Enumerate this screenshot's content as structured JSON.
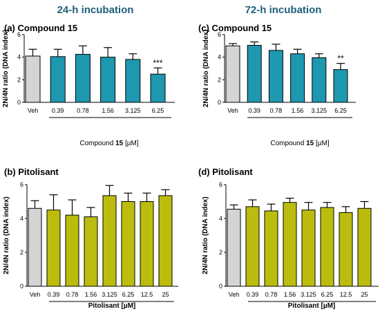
{
  "column_titles": [
    "24-h incubation",
    "72-h incubation"
  ],
  "colors": {
    "veh": "#d4d4d4",
    "compound": "#1e98ae",
    "pitolisant": "#bcbc0f",
    "title": "#1f5f7a"
  },
  "chart_data": [
    {
      "panel": "(a) Compound 15",
      "type": "bar",
      "ylabel": "2N/4N ratio (DNA index)",
      "ylim": [
        0,
        6
      ],
      "yticks": [
        "0",
        "2",
        "4",
        "6"
      ],
      "categories": [
        "Veh",
        "0.39",
        "0.78",
        "1.56",
        "3.125",
        "6.25"
      ],
      "values": [
        4.1,
        4.05,
        4.25,
        4.0,
        3.8,
        2.5
      ],
      "errors": [
        0.6,
        0.65,
        0.75,
        0.85,
        0.5,
        0.55
      ],
      "significance": [
        "",
        "",
        "",
        "",
        "",
        "***"
      ],
      "xlabel_prefix": "Compound ",
      "xlabel_bold": "15",
      "xlabel_suffix": " [µM]"
    },
    {
      "panel": "(c) Compound 15",
      "type": "bar",
      "ylabel": "2N/4N ratio (DNA index)",
      "ylim": [
        0,
        6
      ],
      "yticks": [
        "0",
        "2",
        "4",
        "6"
      ],
      "categories": [
        "Veh",
        "0.39",
        "0.78",
        "1.56",
        "3.125",
        "6.25"
      ],
      "values": [
        5.0,
        5.05,
        4.6,
        4.3,
        3.95,
        2.9
      ],
      "errors": [
        0.2,
        0.3,
        0.55,
        0.4,
        0.35,
        0.55
      ],
      "significance": [
        "",
        "",
        "",
        "",
        "",
        "**"
      ],
      "xlabel_prefix": "Compound ",
      "xlabel_bold": "15",
      "xlabel_suffix": " [µM]"
    },
    {
      "panel": "(b) Pitolisant",
      "type": "bar",
      "ylabel": "2N/4N ratio (DNA index)",
      "ylim": [
        0,
        6
      ],
      "yticks": [
        "0",
        "2",
        "4",
        "6"
      ],
      "categories": [
        "Veh",
        "0.39",
        "0.78",
        "1.56",
        "3.125",
        "6.25",
        "12.5",
        "25"
      ],
      "values": [
        4.6,
        4.5,
        4.2,
        4.1,
        5.35,
        5.0,
        5.0,
        5.35
      ],
      "errors": [
        0.45,
        0.9,
        0.9,
        0.55,
        0.6,
        0.5,
        0.5,
        0.35
      ],
      "significance": [
        "",
        "",
        "",
        "",
        "",
        "",
        "",
        ""
      ],
      "xlabel_prefix": "",
      "xlabel_bold": "Pitolisant [µM]",
      "xlabel_suffix": ""
    },
    {
      "panel": "(d) Pitolisant",
      "type": "bar",
      "ylabel": "2N/4N ratio (DNA index)",
      "ylim": [
        0,
        6
      ],
      "yticks": [
        "0",
        "2",
        "4",
        "6"
      ],
      "categories": [
        "Veh",
        "0.39",
        "0.78",
        "1.56",
        "3.125",
        "6.25",
        "12.5",
        "25"
      ],
      "values": [
        4.55,
        4.7,
        4.45,
        4.95,
        4.5,
        4.65,
        4.35,
        4.6
      ],
      "errors": [
        0.25,
        0.4,
        0.4,
        0.25,
        0.45,
        0.3,
        0.35,
        0.4
      ],
      "significance": [
        "",
        "",
        "",
        "",
        "",
        "",
        "",
        ""
      ],
      "xlabel_prefix": "",
      "xlabel_bold": "Pitolisant [µM]",
      "xlabel_suffix": ""
    }
  ]
}
